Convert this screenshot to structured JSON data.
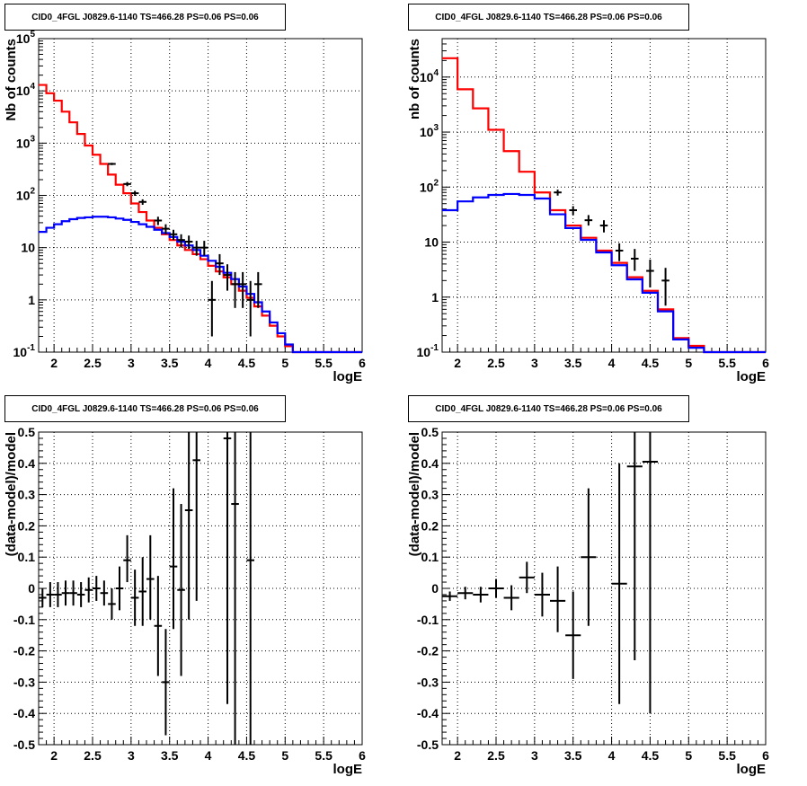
{
  "colors": {
    "model_total": "#ff0000",
    "model_component": "#0000ff",
    "data": "#000000",
    "grid": "#000000"
  },
  "chart_data": [
    {
      "type": "line",
      "panel": "top-left",
      "title": "CID0_4FGL J0829.6-1140 TS=466.28 PS=0.06 PS=0.06",
      "xlabel": "logE",
      "ylabel": "Nb of counts",
      "log_y": true,
      "grid": true,
      "xlim": [
        1.8,
        6
      ],
      "ylim": [
        0.1,
        100000
      ],
      "xticks": [
        "2",
        "2.5",
        "3",
        "3.5",
        "4",
        "4.5",
        "5",
        "5.5",
        "6"
      ],
      "yticks": [
        "10^-1",
        "1",
        "10",
        "10^2",
        "10^3",
        "10^4",
        "10^5"
      ],
      "bin_edges": [
        1.8,
        1.9,
        2.0,
        2.1,
        2.2,
        2.3,
        2.4,
        2.5,
        2.6,
        2.7,
        2.8,
        2.9,
        3.0,
        3.1,
        3.2,
        3.3,
        3.4,
        3.5,
        3.6,
        3.7,
        3.8,
        3.9,
        4.0,
        4.1,
        4.2,
        4.3,
        4.4,
        4.5,
        4.6,
        4.7,
        4.8,
        4.9,
        5.0,
        5.1,
        5.2,
        5.3,
        5.4,
        5.5,
        5.6,
        5.7,
        5.8,
        5.9,
        6.0
      ],
      "series": [
        {
          "values": [
            13000,
            9000,
            6500,
            4000,
            2500,
            1500,
            900,
            600,
            400,
            250,
            160,
            110,
            70,
            48,
            33,
            24,
            18,
            14,
            11,
            9,
            7.5,
            6,
            4.5,
            3.5,
            2.7,
            2.0,
            1.5,
            1.1,
            0.75,
            0.5,
            0.32,
            0.2,
            0.13,
            0.1,
            0.1,
            0.1,
            0.1,
            0.1,
            0.1,
            0.1,
            0.1,
            0.1
          ]
        },
        {
          "values": [
            20,
            24,
            28,
            32,
            35,
            37,
            38,
            39,
            39,
            38,
            36,
            34,
            31,
            28,
            25,
            22,
            19,
            16,
            13,
            11,
            9,
            7,
            5.6,
            4.3,
            3.3,
            2.5,
            1.8,
            1.3,
            0.9,
            0.6,
            0.37,
            0.23,
            0.14,
            0.1,
            0.1,
            0.1,
            0.1,
            0.1,
            0.1,
            0.1,
            0.1,
            0.1
          ]
        }
      ],
      "points": [
        {
          "x": 2.75,
          "y": 400,
          "lo": 380,
          "hi": 420
        },
        {
          "x": 2.95,
          "y": 165,
          "lo": 150,
          "hi": 180
        },
        {
          "x": 3.05,
          "y": 110,
          "lo": 98,
          "hi": 122
        },
        {
          "x": 3.15,
          "y": 75,
          "lo": 66,
          "hi": 84
        },
        {
          "x": 3.35,
          "y": 33,
          "lo": 27,
          "hi": 39
        },
        {
          "x": 3.45,
          "y": 23,
          "lo": 18,
          "hi": 28
        },
        {
          "x": 3.55,
          "y": 18,
          "lo": 14,
          "hi": 22
        },
        {
          "x": 3.65,
          "y": 14,
          "lo": 10,
          "hi": 18
        },
        {
          "x": 3.75,
          "y": 13,
          "lo": 9.5,
          "hi": 17
        },
        {
          "x": 3.85,
          "y": 10,
          "lo": 7,
          "hi": 13.5
        },
        {
          "x": 3.95,
          "y": 10,
          "lo": 7,
          "hi": 13.5
        },
        {
          "x": 4.05,
          "y": 1,
          "lo": 0.2,
          "hi": 2.3
        },
        {
          "x": 4.15,
          "y": 5,
          "lo": 3,
          "hi": 7.5
        },
        {
          "x": 4.25,
          "y": 3,
          "lo": 1.5,
          "hi": 4.8
        },
        {
          "x": 4.35,
          "y": 2,
          "lo": 0.7,
          "hi": 3.4
        },
        {
          "x": 4.45,
          "y": 2,
          "lo": 0.7,
          "hi": 3.4
        },
        {
          "x": 4.55,
          "y": 1,
          "lo": 0.2,
          "hi": 2.3
        },
        {
          "x": 4.65,
          "y": 2,
          "lo": 0.7,
          "hi": 3.4
        }
      ]
    },
    {
      "type": "line",
      "panel": "top-right",
      "title": "CID0_4FGL J0829.6-1140 TS=466.28 PS=0.06 PS=0.06",
      "xlabel": "logE",
      "ylabel": "nb of counts",
      "log_y": true,
      "grid": true,
      "xlim": [
        1.8,
        6
      ],
      "ylim": [
        0.1,
        50000
      ],
      "xticks": [
        "2",
        "2.5",
        "3",
        "3.5",
        "4",
        "4.5",
        "5",
        "5.5",
        "6"
      ],
      "yticks": [
        "10^-1",
        "1",
        "10",
        "10^2",
        "10^3",
        "10^4"
      ],
      "bin_edges": [
        1.8,
        2.0,
        2.2,
        2.4,
        2.6,
        2.8,
        3.0,
        3.2,
        3.4,
        3.6,
        3.8,
        4.0,
        4.2,
        4.4,
        4.6,
        4.8,
        5.0,
        5.2,
        5.4,
        5.6,
        5.8,
        6.0
      ],
      "series": [
        {
          "values": [
            22000,
            6000,
            2700,
            1100,
            450,
            190,
            80,
            38,
            20,
            12,
            7,
            4.2,
            2.3,
            1.3,
            0.6,
            0.18,
            0.13,
            0.1,
            0.1,
            0.1,
            0.1
          ]
        },
        {
          "values": [
            38,
            55,
            65,
            72,
            75,
            72,
            62,
            32,
            18,
            11,
            6.5,
            3.8,
            2.1,
            1.2,
            0.55,
            0.17,
            0.12,
            0.1,
            0.1,
            0.1,
            0.1
          ]
        }
      ],
      "points": [
        {
          "x": 3.3,
          "y": 80,
          "lo": 70,
          "hi": 90
        },
        {
          "x": 3.5,
          "y": 38,
          "lo": 31,
          "hi": 45
        },
        {
          "x": 3.7,
          "y": 25,
          "lo": 20,
          "hi": 31
        },
        {
          "x": 3.9,
          "y": 20,
          "lo": 15,
          "hi": 25
        },
        {
          "x": 4.1,
          "y": 7,
          "lo": 4.5,
          "hi": 9.5
        },
        {
          "x": 4.3,
          "y": 5,
          "lo": 3,
          "hi": 7.5
        },
        {
          "x": 4.5,
          "y": 3,
          "lo": 1.5,
          "hi": 4.8
        },
        {
          "x": 4.7,
          "y": 2,
          "lo": 0.7,
          "hi": 3.4
        }
      ]
    },
    {
      "type": "scatter",
      "panel": "bottom-left",
      "title": "CID0_4FGL J0829.6-1140 TS=466.28 PS=0.06 PS=0.06",
      "xlabel": "logE",
      "ylabel": "(data-model)/model",
      "grid": true,
      "xlim": [
        1.8,
        6
      ],
      "ylim": [
        -0.5,
        0.5
      ],
      "xticks": [
        "2",
        "2.5",
        "3",
        "3.5",
        "4",
        "4.5",
        "5",
        "5.5",
        "6"
      ],
      "yticks": [
        "-0.5",
        "-0.4",
        "-0.3",
        "-0.2",
        "-0.1",
        "0",
        "0.1",
        "0.2",
        "0.3",
        "0.4",
        "0.5"
      ],
      "xhalf": 0.05,
      "points": [
        {
          "x": 1.85,
          "y": -0.03,
          "lo": -0.06,
          "hi": 0.0
        },
        {
          "x": 1.95,
          "y": -0.02,
          "lo": -0.06,
          "hi": 0.02
        },
        {
          "x": 2.05,
          "y": -0.02,
          "lo": -0.06,
          "hi": 0.02
        },
        {
          "x": 2.15,
          "y": -0.015,
          "lo": -0.055,
          "hi": 0.025
        },
        {
          "x": 2.25,
          "y": -0.015,
          "lo": -0.055,
          "hi": 0.025
        },
        {
          "x": 2.35,
          "y": -0.02,
          "lo": -0.06,
          "hi": 0.02
        },
        {
          "x": 2.45,
          "y": -0.005,
          "lo": -0.045,
          "hi": 0.035
        },
        {
          "x": 2.55,
          "y": 0.0,
          "lo": -0.04,
          "hi": 0.04
        },
        {
          "x": 2.65,
          "y": -0.015,
          "lo": -0.055,
          "hi": 0.025
        },
        {
          "x": 2.75,
          "y": -0.05,
          "lo": -0.1,
          "hi": 0.0
        },
        {
          "x": 2.85,
          "y": 0.0,
          "lo": -0.07,
          "hi": 0.07
        },
        {
          "x": 2.95,
          "y": 0.09,
          "lo": 0.02,
          "hi": 0.17
        },
        {
          "x": 3.05,
          "y": -0.03,
          "lo": -0.12,
          "hi": 0.06
        },
        {
          "x": 3.15,
          "y": -0.01,
          "lo": -0.12,
          "hi": 0.1
        },
        {
          "x": 3.25,
          "y": 0.03,
          "lo": -0.1,
          "hi": 0.17
        },
        {
          "x": 3.35,
          "y": -0.12,
          "lo": -0.28,
          "hi": 0.04
        },
        {
          "x": 3.45,
          "y": -0.3,
          "lo": -0.47,
          "hi": -0.13
        },
        {
          "x": 3.55,
          "y": 0.07,
          "lo": -0.13,
          "hi": 0.32
        },
        {
          "x": 3.65,
          "y": -0.005,
          "lo": -0.28,
          "hi": 0.27
        },
        {
          "x": 3.75,
          "y": 0.25,
          "lo": -0.1,
          "hi": 0.6
        },
        {
          "x": 3.85,
          "y": 0.41,
          "lo": -0.04,
          "hi": 0.85
        },
        {
          "x": 4.25,
          "y": 0.48,
          "lo": -0.37,
          "hi": 1.2
        },
        {
          "x": 4.35,
          "y": 0.27,
          "lo": -0.9,
          "hi": 1.2
        },
        {
          "x": 4.55,
          "y": 0.09,
          "lo": -0.9,
          "hi": 1.2
        }
      ]
    },
    {
      "type": "scatter",
      "panel": "bottom-right",
      "title": "CID0_4FGL J0829.6-1140 TS=466.28 PS=0.06 PS=0.06",
      "xlabel": "logE",
      "ylabel": "(data-model)/model",
      "grid": true,
      "xlim": [
        1.8,
        6
      ],
      "ylim": [
        -0.5,
        0.5
      ],
      "xticks": [
        "2",
        "2.5",
        "3",
        "3.5",
        "4",
        "4.5",
        "5",
        "5.5",
        "6"
      ],
      "yticks": [
        "-0.5",
        "-0.4",
        "-0.3",
        "-0.2",
        "-0.1",
        "0",
        "0.1",
        "0.2",
        "0.3",
        "0.4",
        "0.5"
      ],
      "xhalf": 0.1,
      "points": [
        {
          "x": 1.9,
          "y": -0.025,
          "lo": -0.04,
          "hi": -0.01
        },
        {
          "x": 2.1,
          "y": -0.015,
          "lo": -0.035,
          "hi": 0.005
        },
        {
          "x": 2.3,
          "y": -0.02,
          "lo": -0.045,
          "hi": 0.005
        },
        {
          "x": 2.5,
          "y": 0.0,
          "lo": -0.03,
          "hi": 0.03
        },
        {
          "x": 2.7,
          "y": -0.03,
          "lo": -0.07,
          "hi": 0.01
        },
        {
          "x": 2.9,
          "y": 0.035,
          "lo": -0.015,
          "hi": 0.085
        },
        {
          "x": 3.1,
          "y": -0.02,
          "lo": -0.09,
          "hi": 0.05
        },
        {
          "x": 3.3,
          "y": -0.04,
          "lo": -0.14,
          "hi": 0.07
        },
        {
          "x": 3.5,
          "y": -0.15,
          "lo": -0.29,
          "hi": -0.01
        },
        {
          "x": 3.7,
          "y": 0.1,
          "lo": -0.12,
          "hi": 0.32
        },
        {
          "x": 4.1,
          "y": 0.015,
          "lo": -0.37,
          "hi": 0.4
        },
        {
          "x": 4.3,
          "y": 0.39,
          "lo": -0.23,
          "hi": 1.0
        },
        {
          "x": 4.5,
          "y": 0.405,
          "lo": -0.4,
          "hi": 1.2
        }
      ]
    }
  ]
}
